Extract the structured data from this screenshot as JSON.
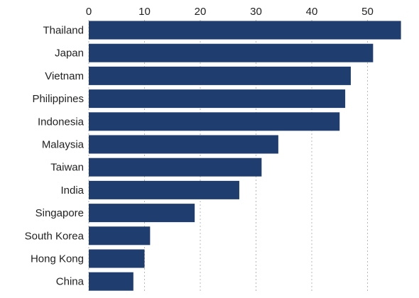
{
  "chart_data": {
    "type": "bar",
    "orientation": "horizontal",
    "title": "",
    "xlabel": "",
    "ylabel": "",
    "categories": [
      "Thailand",
      "Japan",
      "Vietnam",
      "Philippines",
      "Indonesia",
      "Malaysia",
      "Taiwan",
      "India",
      "Singapore",
      "South Korea",
      "Hong Kong",
      "China"
    ],
    "values": [
      56,
      51,
      47,
      46,
      45,
      34,
      31,
      27,
      19,
      11,
      10,
      8
    ],
    "xlim": [
      0,
      56
    ],
    "x_ticks": [
      "0",
      "10",
      "20",
      "30",
      "40",
      "50"
    ],
    "x_axis_position": "top",
    "grid": "vertical-dotted",
    "bar_color": "#1f3d6e"
  }
}
